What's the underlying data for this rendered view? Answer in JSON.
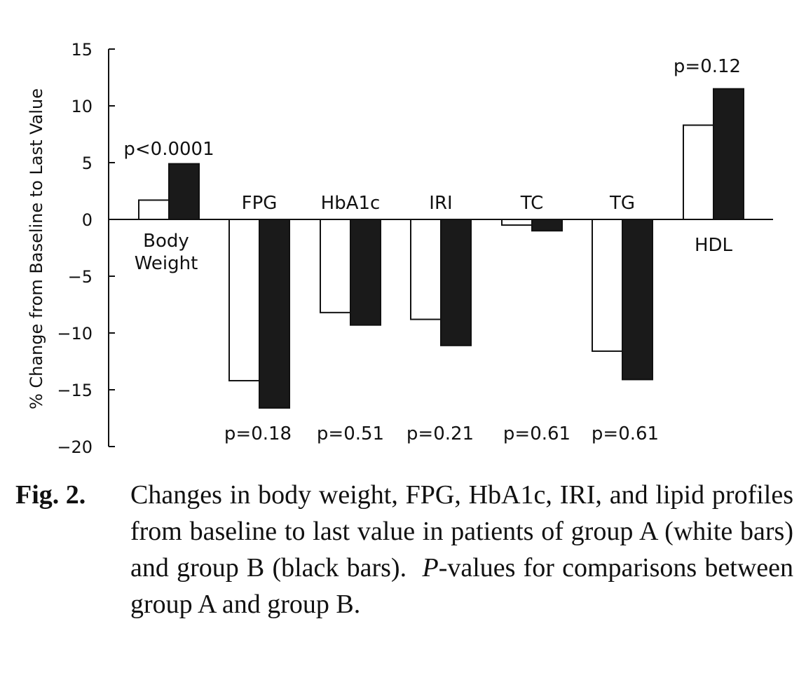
{
  "chart_data": {
    "type": "bar",
    "ylabel": "% Change from Baseline to Last Value",
    "ylim": [
      -20,
      15
    ],
    "yticks": [
      15,
      10,
      5,
      0,
      -5,
      -10,
      -15,
      -20
    ],
    "ytick_labels": [
      "15",
      "10",
      "5",
      "0",
      "−5",
      "−10",
      "−15",
      "−20"
    ],
    "categories": [
      "Body Weight",
      "FPG",
      "HbA1c",
      "IRI",
      "TC",
      "TG",
      "HDL"
    ],
    "category_label_lines": [
      [
        "Body",
        "Weight"
      ],
      [
        "FPG"
      ],
      [
        "HbA1c"
      ],
      [
        "IRI"
      ],
      [
        "TC"
      ],
      [
        "TG"
      ],
      [
        "HDL"
      ]
    ],
    "series": [
      {
        "fill": "#ffffff",
        "values": [
          1.7,
          -14.2,
          -8.2,
          -8.8,
          -0.5,
          -11.6,
          8.3
        ]
      },
      {
        "fill": "#1a1a1a",
        "values": [
          4.9,
          -16.6,
          -9.3,
          -11.1,
          -1.0,
          -14.1,
          11.5
        ]
      }
    ],
    "p_values": [
      "p<0.0001",
      "p=0.18",
      "p=0.51",
      "p=0.21",
      "p=0.61",
      "p=0.61",
      "p=0.12"
    ],
    "grid": false,
    "legend": "none"
  },
  "caption": {
    "label": "Fig. 2.",
    "text_before_italic": "Changes in body weight, FPG, HbA1c, IRI, and lipid profiles from baseline to last value in patients of group A (white bars) and group B (black bars).  ",
    "italic": "P",
    "text_after_italic": "-values for comparisons between group A and group B."
  }
}
